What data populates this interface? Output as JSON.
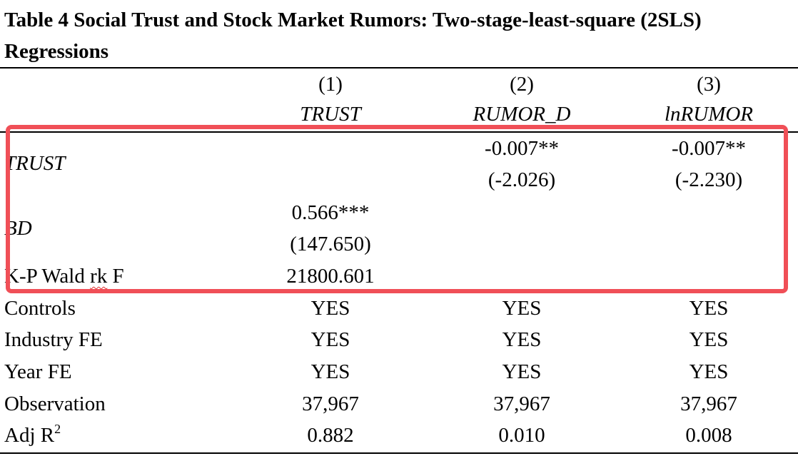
{
  "table": {
    "title": "Table 4 Social Trust and Stock Market Rumors: Two-stage-least-square (2SLS) Regressions",
    "columns": [
      {
        "number": "(1)",
        "dependent": "TRUST"
      },
      {
        "number": "(2)",
        "dependent": "RUMOR_D"
      },
      {
        "number": "(3)",
        "dependent": "lnRUMOR"
      }
    ],
    "rows": {
      "trust": {
        "label": "TRUST",
        "c1": "",
        "c2": "-0.007**",
        "c3": "-0.007**",
        "c1_t": "",
        "c2_t": "(-2.026)",
        "c3_t": "(-2.230)"
      },
      "bd": {
        "label": "BD",
        "c1": "0.566***",
        "c2": "",
        "c3": "",
        "c1_t": "(147.650)",
        "c2_t": "",
        "c3_t": ""
      },
      "kp": {
        "label_prefix": "K-P Wald ",
        "label_flagged": "rk",
        "label_suffix": " F",
        "c1": "21800.601",
        "c2": "",
        "c3": ""
      },
      "controls": {
        "label": "Controls",
        "c1": "YES",
        "c2": "YES",
        "c3": "YES"
      },
      "industry": {
        "label": "Industry FE",
        "c1": "YES",
        "c2": "YES",
        "c3": "YES"
      },
      "year": {
        "label": "Year FE",
        "c1": "YES",
        "c2": "YES",
        "c3": "YES"
      },
      "obs": {
        "label": "Observation",
        "c1": "37,967",
        "c2": "37,967",
        "c3": "37,967"
      },
      "adjr2": {
        "label": "Adj R",
        "label_sup": "2",
        "c1": "0.882",
        "c2": "0.010",
        "c3": "0.008"
      }
    }
  },
  "highlight": {
    "color": "#f04f57"
  }
}
